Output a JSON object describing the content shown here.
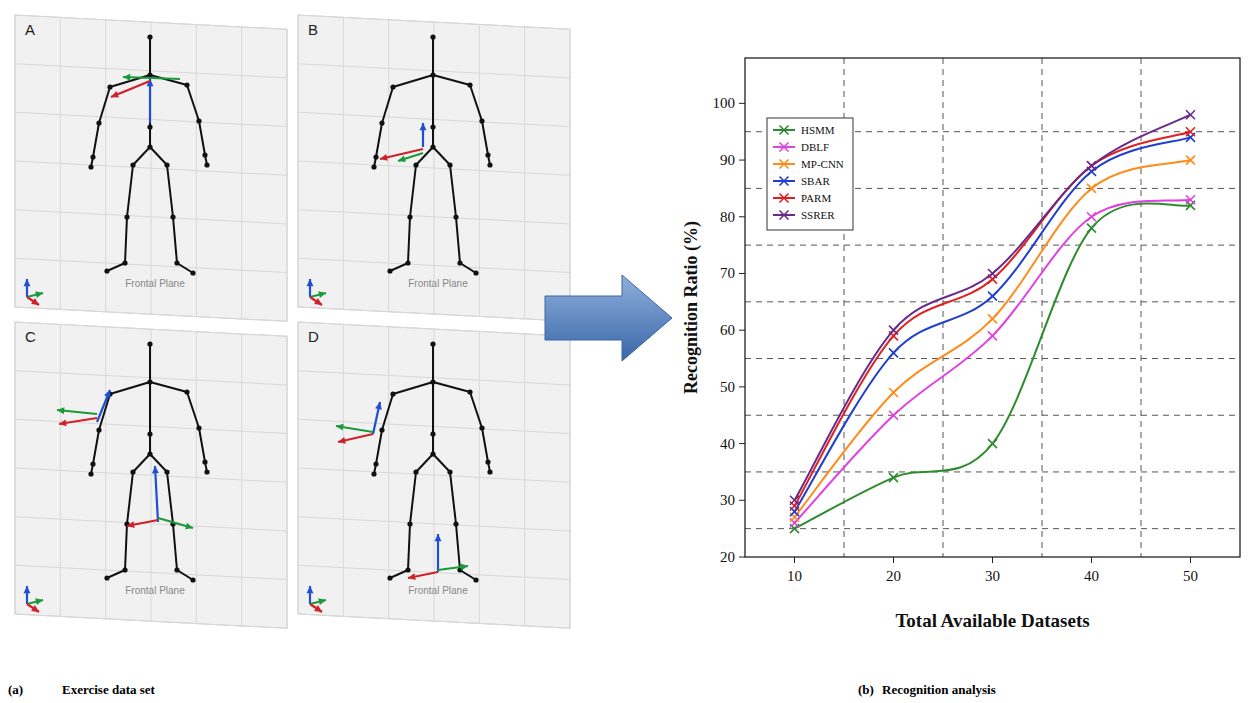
{
  "figure_captions": {
    "a": {
      "label": "(a)",
      "text": "Exercise data set"
    },
    "b": {
      "label": "(b)",
      "text": "Recognition analysis"
    }
  },
  "exercise_views": [
    {
      "letter": "A",
      "plane_label": "Frontal Plane"
    },
    {
      "letter": "B",
      "plane_label": "Frontal Plane"
    },
    {
      "letter": "C",
      "plane_label": "Frontal Plane"
    },
    {
      "letter": "D",
      "plane_label": "Frontal Plane"
    }
  ],
  "chart_data": {
    "type": "line",
    "x_label": "Total Available Datasets",
    "y_label": "Recognition Ratio (%)",
    "x": [
      10,
      20,
      30,
      40,
      50
    ],
    "xlim": [
      5,
      55
    ],
    "xticks": [
      10,
      20,
      30,
      40,
      50
    ],
    "ylim": [
      20,
      108
    ],
    "yticks": [
      20,
      30,
      40,
      50,
      60,
      70,
      80,
      90,
      100
    ],
    "grid": true,
    "legend": "upper left",
    "marker": "x",
    "line_style": "solid",
    "series": [
      {
        "name": "HSMM",
        "color": "#2e8b2e",
        "values": [
          25,
          34,
          40,
          78,
          82
        ]
      },
      {
        "name": "DBLF",
        "color": "#e040e0",
        "values": [
          26,
          45,
          59,
          80,
          83
        ]
      },
      {
        "name": "MP-CNN",
        "color": "#ff8c1a",
        "values": [
          27,
          49,
          62,
          85,
          90
        ]
      },
      {
        "name": "SBAR",
        "color": "#1f3fd0",
        "values": [
          28,
          56,
          66,
          88,
          94
        ]
      },
      {
        "name": "PARM",
        "color": "#e02020",
        "values": [
          29,
          59,
          69,
          89,
          95
        ]
      },
      {
        "name": "SSRER",
        "color": "#6a2a8a",
        "values": [
          30,
          60,
          70,
          89,
          98
        ]
      }
    ]
  }
}
